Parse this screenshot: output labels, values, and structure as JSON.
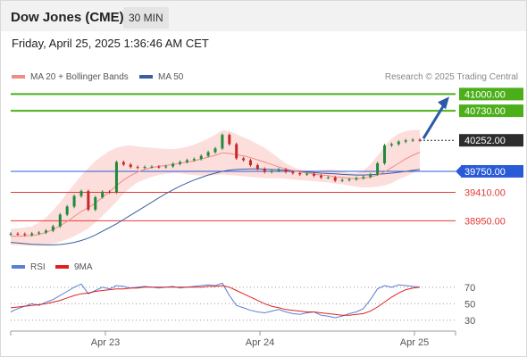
{
  "header": {
    "title": "Dow Jones (CME)",
    "timeframe": "30 MIN"
  },
  "datetime": "Friday, April 25, 2025 1:36:46 AM CET",
  "legend": {
    "ma20": {
      "label": "MA 20 + Bollinger Bands",
      "color": "#f28b82"
    },
    "ma50": {
      "label": "MA 50",
      "color": "#3a5f9f"
    }
  },
  "research": "Research © 2025 Trading Central",
  "rsi_legend": {
    "rsi": {
      "label": "RSI",
      "color": "#5b7fd6"
    },
    "ma9": {
      "label": "9MA",
      "color": "#e02020"
    }
  },
  "colors": {
    "resistance": "#4caf1a",
    "support": "#e53935",
    "pivot": "#2a5bd7",
    "current": "#2d2d2d",
    "arrow": "#2a5aa8",
    "band": "#fbd3d0",
    "up_candle": "#1f8a3a",
    "down_candle": "#c62828"
  },
  "chart_data": [
    {
      "type": "line",
      "title": "",
      "xticks": [
        "Apr 23",
        "Apr 24",
        "Apr 25"
      ],
      "levels": [
        {
          "price": 41000.0,
          "label": "41000.00",
          "kind": "resistance"
        },
        {
          "price": 40730.0,
          "label": "40730.00",
          "kind": "resistance"
        },
        {
          "price": 40252.0,
          "label": "40252.00",
          "kind": "current"
        },
        {
          "price": 39750.0,
          "label": "39750.00",
          "kind": "pivot"
        },
        {
          "price": 39410.0,
          "label": "39410.00",
          "kind": "support"
        },
        {
          "price": 38950.0,
          "label": "38950.00",
          "kind": "support"
        }
      ],
      "ylim": [
        38450,
        41150
      ],
      "price_series": [
        38740,
        38735,
        38720,
        38745,
        38760,
        38790,
        38860,
        39050,
        39180,
        39350,
        39430,
        39130,
        39330,
        39420,
        39410,
        39900,
        39860,
        39820,
        39810,
        39820,
        39825,
        39820,
        39830,
        39870,
        39900,
        39930,
        39950,
        40000,
        40060,
        40120,
        40340,
        40190,
        39960,
        39930,
        39850,
        39790,
        39740,
        39760,
        39780,
        39740,
        39720,
        39700,
        39710,
        39680,
        39650,
        39650,
        39600,
        39610,
        39620,
        39640,
        39660,
        39700,
        39880,
        40170,
        40190,
        40230,
        40250,
        40260,
        40252
      ],
      "ma20": [
        38700,
        38700,
        38705,
        38710,
        38730,
        38760,
        38810,
        38870,
        38940,
        39020,
        39100,
        39160,
        39240,
        39330,
        39420,
        39520,
        39610,
        39680,
        39740,
        39780,
        39810,
        39830,
        39845,
        39860,
        39880,
        39900,
        39920,
        39950,
        39980,
        40010,
        40050,
        40040,
        40020,
        40000,
        39970,
        39935,
        39900,
        39860,
        39820,
        39790,
        39760,
        39740,
        39720,
        39705,
        39690,
        39680,
        39660,
        39650,
        39640,
        39630,
        39640,
        39660,
        39690,
        39740,
        39810,
        39880,
        39950,
        40010,
        40060
      ],
      "bb_upper": [
        38820,
        38830,
        38840,
        38860,
        38920,
        39000,
        39120,
        39250,
        39400,
        39540,
        39680,
        39800,
        39920,
        40000,
        40080,
        40130,
        40160,
        40170,
        40150,
        40140,
        40130,
        40120,
        40110,
        40110,
        40120,
        40150,
        40180,
        40230,
        40280,
        40340,
        40420,
        40400,
        40350,
        40300,
        40250,
        40190,
        40130,
        40050,
        39960,
        39880,
        39820,
        39780,
        39760,
        39760,
        39770,
        39780,
        39770,
        39750,
        39720,
        39720,
        39760,
        39860,
        40000,
        40160,
        40280,
        40360,
        40400,
        40420,
        40420
      ],
      "bb_lower": [
        38560,
        38555,
        38550,
        38545,
        38545,
        38560,
        38580,
        38610,
        38650,
        38700,
        38760,
        38830,
        38920,
        39030,
        39140,
        39260,
        39390,
        39490,
        39570,
        39620,
        39660,
        39690,
        39710,
        39720,
        39720,
        39700,
        39690,
        39680,
        39680,
        39690,
        39700,
        39690,
        39680,
        39670,
        39660,
        39650,
        39640,
        39640,
        39640,
        39630,
        39620,
        39610,
        39600,
        39590,
        39580,
        39570,
        39550,
        39540,
        39520,
        39500,
        39490,
        39490,
        39500,
        39520,
        39560,
        39620,
        39670,
        39720,
        39760
      ],
      "ma50": [
        38600,
        38590,
        38580,
        38570,
        38565,
        38560,
        38560,
        38565,
        38580,
        38600,
        38630,
        38670,
        38720,
        38780,
        38840,
        38900,
        38970,
        39040,
        39110,
        39180,
        39250,
        39320,
        39390,
        39450,
        39510,
        39560,
        39610,
        39650,
        39690,
        39720,
        39750,
        39770,
        39780,
        39785,
        39790,
        39790,
        39785,
        39780,
        39775,
        39770,
        39760,
        39750,
        39740,
        39730,
        39720,
        39715,
        39710,
        39700,
        39695,
        39690,
        39690,
        39695,
        39700,
        39710,
        39720,
        39735,
        39750,
        39765,
        39780
      ]
    },
    {
      "type": "line",
      "title": "",
      "yticks": [
        70,
        50,
        30
      ],
      "ylim": [
        20,
        85
      ],
      "series": [
        {
          "name": "RSI",
          "values": [
            40,
            44,
            47,
            50,
            48,
            52,
            55,
            60,
            65,
            70,
            74,
            62,
            66,
            70,
            68,
            72,
            71,
            69,
            70,
            71,
            70,
            69,
            70,
            71,
            69,
            70,
            71,
            72,
            73,
            72,
            75,
            60,
            48,
            45,
            42,
            40,
            39,
            41,
            43,
            40,
            38,
            37,
            39,
            40,
            36,
            35,
            33,
            35,
            38,
            40,
            44,
            55,
            68,
            72,
            70,
            73,
            72,
            71,
            70
          ]
        },
        {
          "name": "9MA",
          "values": [
            45,
            46,
            47,
            48,
            49,
            50,
            52,
            54,
            57,
            60,
            62,
            63,
            65,
            66,
            67,
            68,
            68,
            69,
            69,
            70,
            70,
            70,
            70,
            70,
            70,
            70,
            70,
            70,
            71,
            71,
            72,
            70,
            66,
            62,
            58,
            54,
            50,
            47,
            45,
            43,
            42,
            41,
            40,
            40,
            39,
            38,
            37,
            36,
            36,
            37,
            38,
            41,
            46,
            52,
            58,
            63,
            67,
            69,
            70
          ]
        }
      ]
    }
  ]
}
